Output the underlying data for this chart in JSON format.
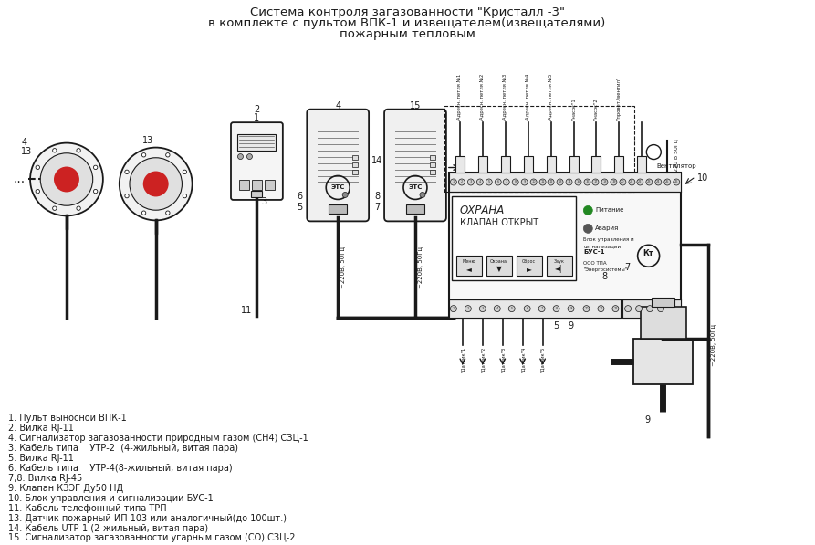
{
  "title_line1": "Система контроля загазованности \"Кристалл -3\"",
  "title_line2": "в комплекте с пультом ВПК-1 и извещателем(извещателями)",
  "title_line3": "пожарным тепловым",
  "bg_color": "#ffffff",
  "line_color": "#1a1a1a",
  "legend_items": [
    "1. Пульт выносной ВПК-1",
    "2. Вилка RJ-11",
    "4. Сигнализатор загазованности природным газом (СН4) СЗЦ-1",
    "3. Кабель типа    УТР-2  (4-жильный, витая пара)",
    "5. Вилка RJ-11",
    "6. Кабель типа    УТР-4(8-жильный, витая пара)",
    "7,8. Вилка RJ-45",
    "9. Клапан КЗЭГ Ду50 НД",
    "10. Блок управления и сигнализации БУС-1",
    "11. Кабель телефонный типа ТРП",
    "13. Датчик пожарный ИП 103 или аналогичный(до 100шт.)",
    "14. Кабель UТР-1 (2-жильный, витая пара)",
    "15. Сигнализатор загазованности угарным газом (СО) СЗЦ-2"
  ],
  "font_color": "#1a1a1a",
  "title_fontsize": 9.5,
  "legend_fontsize": 7.0,
  "top_labels": [
    "Адресн. петля №1",
    "Адресн. петля №2",
    "Адресн. петля №3",
    "Адресн. петля №4",
    "Адресн. петля №5",
    "\"насос\"1",
    "\"насос\"2",
    "\"провет./вентил\""
  ],
  "bottom_labels": [
    "\"Датчик\"1",
    "\"Датчик\"2",
    "\"Датчик\"3",
    "\"Датчик\"4",
    "\"Датчик\"5"
  ]
}
